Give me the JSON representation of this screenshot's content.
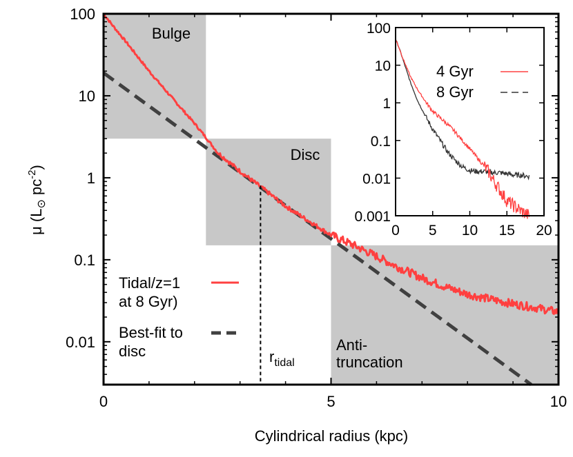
{
  "chart_data": [
    {
      "type": "line",
      "xlabel": "Cylindrical radius (kpc)",
      "ylabel_main": "μ (L",
      "ylabel_sun": "⊙",
      "ylabel_unit": " pc",
      "ylabel_exp": "-2",
      "ylabel_close": ")",
      "xlim": [
        0,
        10
      ],
      "ylim": [
        0.003,
        100
      ],
      "yscale": "log",
      "x_ticks": [
        "0",
        "5",
        "10"
      ],
      "y_ticks": [
        "100",
        "10",
        "1",
        "0.1",
        "0.01"
      ],
      "grid": false,
      "legend_position": "bottom-left",
      "regions": [
        {
          "label": "Bulge",
          "x": [
            0,
            2.25
          ],
          "y": [
            3,
            100
          ]
        },
        {
          "label": "Disc",
          "x": [
            2.25,
            5
          ],
          "y": [
            0.15,
            3
          ]
        },
        {
          "label_line1": "Anti-",
          "label_line2": "truncation",
          "x": [
            5,
            10
          ],
          "y": [
            0.003,
            0.15
          ]
        }
      ],
      "r_tidal": {
        "x": 3.45,
        "y_top": 0.8,
        "label": "r",
        "label_sub": "tidal"
      },
      "series": [
        {
          "name_line1": "Tidal/z=1",
          "name_line2": "at 8 Gyr)",
          "color": "#ff4040",
          "style": "solid",
          "x": [
            0,
            0.2,
            0.5,
            1.0,
            1.5,
            2.0,
            2.25,
            2.5,
            3.0,
            3.5,
            4.0,
            4.5,
            5.0,
            5.5,
            6.0,
            6.5,
            7.0,
            7.5,
            8.0,
            8.5,
            9.0,
            9.5,
            10.0
          ],
          "y": [
            100,
            72,
            45,
            20,
            9.5,
            4.6,
            3.1,
            2.05,
            1.2,
            0.74,
            0.45,
            0.3,
            0.2,
            0.15,
            0.11,
            0.08,
            0.06,
            0.047,
            0.038,
            0.033,
            0.029,
            0.026,
            0.023
          ]
        },
        {
          "name_line1": "Best-fit to",
          "name_line2": "disc",
          "color": "#404040",
          "style": "dashed",
          "x": [
            0,
            9.4
          ],
          "y": [
            19,
            0.003
          ]
        }
      ]
    },
    {
      "type": "line",
      "inset": true,
      "xlim": [
        0,
        20
      ],
      "ylim": [
        0.001,
        100
      ],
      "yscale": "log",
      "x_ticks": [
        "0",
        "5",
        "10",
        "15",
        "20"
      ],
      "y_ticks": [
        "100",
        "10",
        "1",
        "0.1",
        "0.01",
        "0.001"
      ],
      "legend_position": "top-right",
      "series": [
        {
          "name": "4 Gyr",
          "color": "#ff4040",
          "style": "solid",
          "x": [
            0,
            0.5,
            1,
            2,
            3,
            4,
            5,
            6,
            7,
            8,
            9,
            10,
            11,
            12,
            12.5,
            13,
            14,
            15,
            16,
            17,
            18
          ],
          "y": [
            50,
            28,
            15,
            5,
            2.2,
            1.1,
            0.6,
            0.4,
            0.27,
            0.17,
            0.1,
            0.06,
            0.035,
            0.02,
            0.015,
            0.01,
            0.005,
            0.0025,
            0.0018,
            0.0013,
            0.001
          ]
        },
        {
          "name": "8 Gyr",
          "color": "#333333",
          "style": "dashed",
          "x": [
            0,
            0.5,
            1,
            2,
            3,
            4,
            5,
            6,
            7,
            8,
            9,
            10,
            11,
            12,
            13,
            14,
            15,
            16,
            17,
            18
          ],
          "y": [
            50,
            28,
            14,
            3.5,
            1.1,
            0.45,
            0.2,
            0.1,
            0.05,
            0.03,
            0.02,
            0.016,
            0.015,
            0.015,
            0.014,
            0.014,
            0.013,
            0.012,
            0.012,
            0.011
          ]
        }
      ]
    }
  ]
}
